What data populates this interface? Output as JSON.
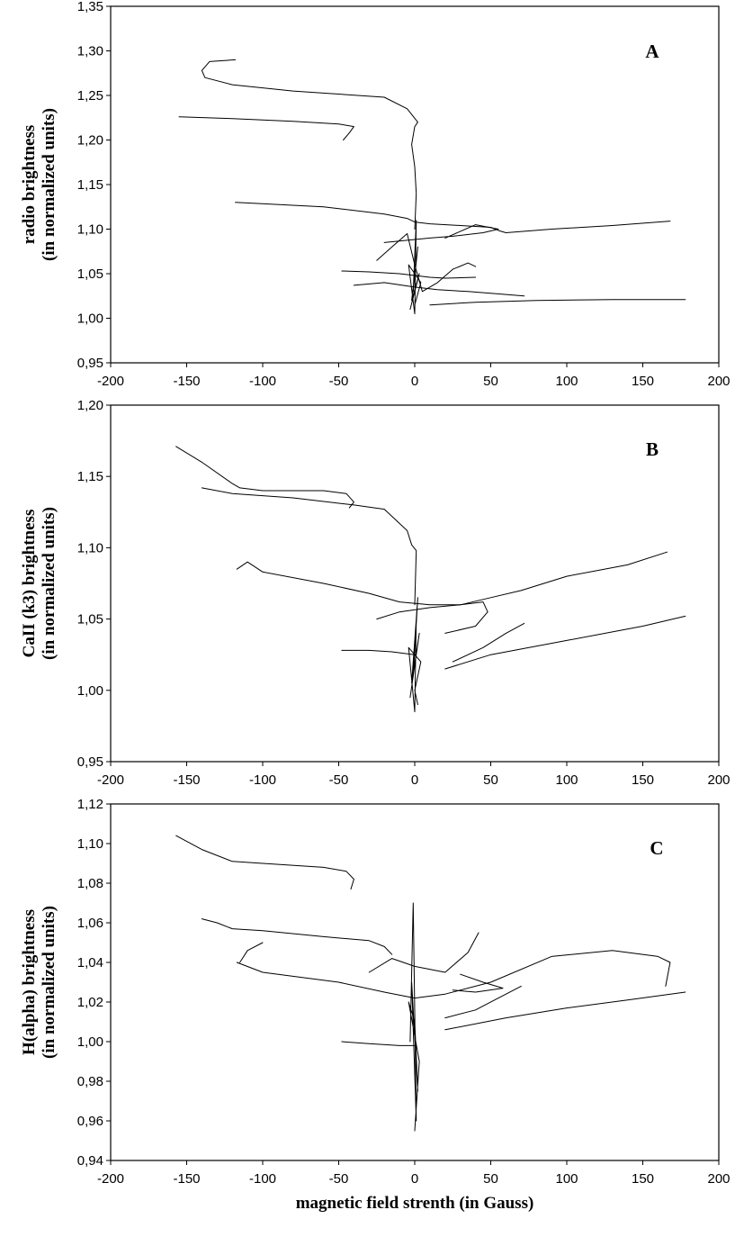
{
  "figure": {
    "xlabel": "magnetic field strenth (in Gauss)"
  },
  "chart_data": [
    {
      "type": "line",
      "panel_label": "A",
      "ylabel_line1": "radio brightness",
      "ylabel_line2": "(in normalized units)",
      "xlim": [
        -200,
        200
      ],
      "ylim": [
        0.95,
        1.35
      ],
      "xticks": [
        -200,
        -150,
        -100,
        -50,
        0,
        50,
        100,
        150,
        200
      ],
      "xtick_labels": [
        "-200",
        "-150",
        "-100",
        "-50",
        "0",
        "50",
        "100",
        "150",
        "200"
      ],
      "yticks": [
        0.95,
        1.0,
        1.05,
        1.1,
        1.15,
        1.2,
        1.25,
        1.3,
        1.35
      ],
      "ytick_labels": [
        "0,95",
        "1,00",
        "1,05",
        "1,10",
        "1,15",
        "1,20",
        "1,25",
        "1,30",
        "1,35"
      ],
      "grid": false,
      "legend": "none",
      "series": [
        {
          "x": [
            -118,
            -135,
            -140,
            -138,
            -120,
            -80,
            -20,
            -5,
            2,
            0,
            -2,
            0,
            1,
            0
          ],
          "y": [
            1.29,
            1.288,
            1.278,
            1.27,
            1.262,
            1.255,
            1.248,
            1.235,
            1.22,
            1.215,
            1.195,
            1.17,
            1.14,
            1.1
          ]
        },
        {
          "x": [
            -155,
            -120,
            -80,
            -50,
            -40,
            -43,
            -47
          ],
          "y": [
            1.226,
            1.224,
            1.221,
            1.218,
            1.215,
            1.208,
            1.2
          ]
        },
        {
          "x": [
            -118,
            -60,
            -20,
            -5,
            0,
            10,
            30,
            50,
            56,
            60,
            90,
            130,
            168
          ],
          "y": [
            1.13,
            1.125,
            1.117,
            1.112,
            1.108,
            1.106,
            1.104,
            1.102,
            1.098,
            1.096,
            1.1,
            1.104,
            1.109
          ]
        },
        {
          "x": [
            -48,
            -30,
            -10,
            0,
            10,
            20,
            40
          ],
          "y": [
            1.053,
            1.052,
            1.05,
            1.048,
            1.046,
            1.045,
            1.046
          ]
        },
        {
          "x": [
            -40,
            -20,
            0,
            15,
            35,
            50,
            72
          ],
          "y": [
            1.037,
            1.04,
            1.035,
            1.032,
            1.03,
            1.028,
            1.025
          ]
        },
        {
          "x": [
            10,
            40,
            80,
            130,
            178
          ],
          "y": [
            1.015,
            1.018,
            1.02,
            1.021,
            1.021
          ]
        },
        {
          "x": [
            -25,
            -15,
            -5,
            0,
            5,
            15,
            25,
            35,
            40
          ],
          "y": [
            1.065,
            1.08,
            1.095,
            1.06,
            1.03,
            1.04,
            1.055,
            1.062,
            1.058
          ]
        },
        {
          "x": [
            -20,
            10,
            25,
            45,
            55,
            40,
            20
          ],
          "y": [
            1.085,
            1.09,
            1.092,
            1.096,
            1.1,
            1.105,
            1.09
          ]
        },
        {
          "x": [
            -3,
            3,
            -2,
            2,
            -1,
            1,
            0,
            -4,
            4,
            0
          ],
          "y": [
            1.01,
            1.05,
            1.02,
            1.08,
            1.03,
            1.11,
            1.005,
            1.06,
            1.04,
            1.015
          ]
        }
      ]
    },
    {
      "type": "line",
      "panel_label": "B",
      "ylabel_line1": "CaII (k3) brightness",
      "ylabel_line2": "(in normalized units)",
      "xlim": [
        -200,
        200
      ],
      "ylim": [
        0.95,
        1.2
      ],
      "xticks": [
        -200,
        -150,
        -100,
        -50,
        0,
        50,
        100,
        150,
        200
      ],
      "xtick_labels": [
        "-200",
        "-150",
        "-100",
        "-50",
        "0",
        "50",
        "100",
        "150",
        "200"
      ],
      "yticks": [
        0.95,
        1.0,
        1.05,
        1.1,
        1.15,
        1.2
      ],
      "ytick_labels": [
        "0,95",
        "1,00",
        "1,05",
        "1,10",
        "1,15",
        "1,20"
      ],
      "grid": false,
      "legend": "none",
      "series": [
        {
          "x": [
            -157,
            -140,
            -120,
            -115,
            -100,
            -60,
            -45,
            -40,
            -43
          ],
          "y": [
            1.171,
            1.16,
            1.145,
            1.142,
            1.14,
            1.14,
            1.138,
            1.132,
            1.128
          ]
        },
        {
          "x": [
            -140,
            -120,
            -80,
            -40,
            -20,
            -5,
            -2,
            1,
            0
          ],
          "y": [
            1.142,
            1.138,
            1.135,
            1.13,
            1.127,
            1.112,
            1.102,
            1.098,
            1.06
          ]
        },
        {
          "x": [
            -117,
            -110,
            -100,
            -60,
            -30,
            -10,
            10,
            30,
            50,
            70,
            100,
            140,
            166
          ],
          "y": [
            1.085,
            1.09,
            1.083,
            1.075,
            1.068,
            1.062,
            1.06,
            1.06,
            1.065,
            1.07,
            1.08,
            1.088,
            1.097
          ]
        },
        {
          "x": [
            -25,
            -10,
            10,
            30,
            45,
            48,
            40,
            20
          ],
          "y": [
            1.05,
            1.055,
            1.058,
            1.06,
            1.062,
            1.055,
            1.045,
            1.04
          ]
        },
        {
          "x": [
            -48,
            -30,
            -15,
            0
          ],
          "y": [
            1.028,
            1.028,
            1.027,
            1.025
          ]
        },
        {
          "x": [
            20,
            50,
            100,
            150,
            178
          ],
          "y": [
            1.015,
            1.025,
            1.035,
            1.045,
            1.052
          ]
        },
        {
          "x": [
            25,
            45,
            60,
            72
          ],
          "y": [
            1.02,
            1.03,
            1.04,
            1.047
          ]
        },
        {
          "x": [
            -3,
            3,
            -2,
            2,
            -1,
            1,
            0,
            -4,
            4,
            0,
            2
          ],
          "y": [
            0.995,
            1.04,
            1.005,
            1.065,
            1.01,
            1.05,
            0.985,
            1.03,
            1.02,
            1.0,
            0.99
          ]
        }
      ]
    },
    {
      "type": "line",
      "panel_label": "C",
      "ylabel_line1": "H(alpha) brightness",
      "ylabel_line2": "(in normalized units)",
      "xlim": [
        -200,
        200
      ],
      "ylim": [
        0.94,
        1.12
      ],
      "xticks": [
        -200,
        -150,
        -100,
        -50,
        0,
        50,
        100,
        150,
        200
      ],
      "xtick_labels": [
        "-200",
        "-150",
        "-100",
        "-50",
        "0",
        "50",
        "100",
        "150",
        "200"
      ],
      "yticks": [
        0.94,
        0.96,
        0.98,
        1.0,
        1.02,
        1.04,
        1.06,
        1.08,
        1.1,
        1.12
      ],
      "ytick_labels": [
        "0,94",
        "0,96",
        "0,98",
        "1,00",
        "1,02",
        "1,04",
        "1,06",
        "1,08",
        "1,10",
        "1,12"
      ],
      "grid": false,
      "legend": "none",
      "series": [
        {
          "x": [
            -157,
            -140,
            -120,
            -100,
            -60,
            -45,
            -40,
            -42
          ],
          "y": [
            1.104,
            1.097,
            1.091,
            1.09,
            1.088,
            1.086,
            1.082,
            1.077
          ]
        },
        {
          "x": [
            -140,
            -130,
            -120,
            -100,
            -60,
            -30,
            -20,
            -15
          ],
          "y": [
            1.062,
            1.06,
            1.057,
            1.056,
            1.053,
            1.051,
            1.048,
            1.044
          ]
        },
        {
          "x": [
            -117,
            -100,
            -50,
            -20,
            0,
            20,
            50,
            90,
            130,
            160,
            168,
            165
          ],
          "y": [
            1.04,
            1.035,
            1.03,
            1.025,
            1.022,
            1.024,
            1.03,
            1.043,
            1.046,
            1.043,
            1.04,
            1.028
          ]
        },
        {
          "x": [
            -115,
            -110,
            -100
          ],
          "y": [
            1.04,
            1.046,
            1.05
          ]
        },
        {
          "x": [
            -48,
            -30,
            -10,
            0
          ],
          "y": [
            1.0,
            0.999,
            0.998,
            0.998
          ]
        },
        {
          "x": [
            20,
            60,
            100,
            140,
            178
          ],
          "y": [
            1.006,
            1.012,
            1.017,
            1.021,
            1.025
          ]
        },
        {
          "x": [
            20,
            40,
            55,
            70
          ],
          "y": [
            1.012,
            1.016,
            1.022,
            1.028
          ]
        },
        {
          "x": [
            30,
            45,
            58,
            40,
            25
          ],
          "y": [
            1.034,
            1.03,
            1.027,
            1.025,
            1.026
          ]
        },
        {
          "x": [
            -30,
            -15,
            0,
            20,
            35,
            42
          ],
          "y": [
            1.035,
            1.042,
            1.038,
            1.035,
            1.045,
            1.055
          ]
        },
        {
          "x": [
            -3,
            -1,
            1,
            -2,
            2,
            0,
            -4,
            3,
            0
          ],
          "y": [
            1.0,
            1.07,
            0.96,
            1.03,
            0.975,
            1.01,
            1.02,
            0.99,
            0.955
          ]
        }
      ]
    }
  ]
}
